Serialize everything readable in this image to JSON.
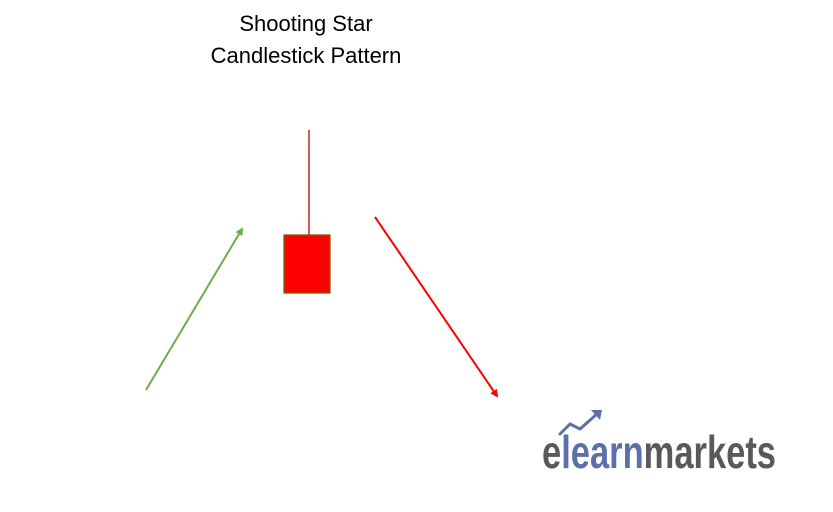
{
  "title": {
    "line1": "Shooting Star",
    "line2": "Candlestick Pattern"
  },
  "colors": {
    "uptrend_arrow": "#70ad47",
    "downtrend_arrow": "#ff0000",
    "candle_body": "#ff0000",
    "candle_outline": "#7f6000",
    "candle_wick": "#c00000",
    "logo_dark": "#595959",
    "logo_accent": "#5b6fa8"
  },
  "logo": {
    "part_e": "e",
    "part_learn": "learn",
    "part_markets": "markets"
  }
}
